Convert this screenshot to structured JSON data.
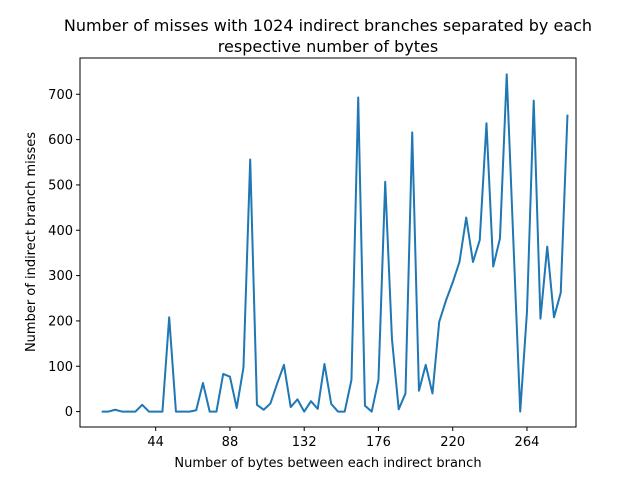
{
  "chart_data": {
    "type": "line",
    "title_lines": [
      "Number of misses with 1024 indirect branches separated by each",
      "respective number of bytes"
    ],
    "xlabel": "Number of bytes between each indirect branch",
    "ylabel": "Number of indirect branch misses",
    "xlim": [
      -0.85,
      293.05
    ],
    "ylim": [
      -34,
      780
    ],
    "xticks": [
      44,
      88,
      132,
      176,
      220,
      264
    ],
    "yticks": [
      0,
      100,
      200,
      300,
      400,
      500,
      600,
      700
    ],
    "grid": false,
    "line_color": "#1f77b4",
    "series": [
      {
        "x": [
          12,
          16,
          20,
          24,
          28,
          32,
          36,
          40,
          44,
          48,
          52,
          56,
          60,
          64,
          68,
          72,
          76,
          80,
          84,
          88,
          92,
          96,
          100,
          104,
          108,
          112,
          116,
          120,
          124,
          128,
          132,
          136,
          140,
          144,
          148,
          152,
          156,
          160,
          164,
          168,
          172,
          176,
          180,
          184,
          188,
          192,
          196,
          200,
          204,
          208,
          212,
          216,
          220,
          224,
          228,
          232,
          236,
          240,
          244,
          248,
          252,
          256,
          260,
          264,
          268,
          272,
          276,
          280,
          284,
          288
        ],
        "y": [
          0,
          0,
          4,
          0,
          0,
          0,
          15,
          0,
          0,
          0,
          208,
          0,
          0,
          0,
          3,
          63,
          0,
          0,
          83,
          77,
          8,
          97,
          556,
          15,
          4,
          18,
          62,
          103,
          10,
          27,
          0,
          23,
          6,
          105,
          17,
          0,
          0,
          70,
          693,
          13,
          0,
          70,
          507,
          160,
          5,
          40,
          616,
          46,
          103,
          40,
          198,
          245,
          285,
          330,
          428,
          330,
          378,
          636,
          320,
          382,
          744,
          370,
          0,
          220,
          686,
          205,
          364,
          208,
          262,
          655
        ]
      }
    ]
  }
}
